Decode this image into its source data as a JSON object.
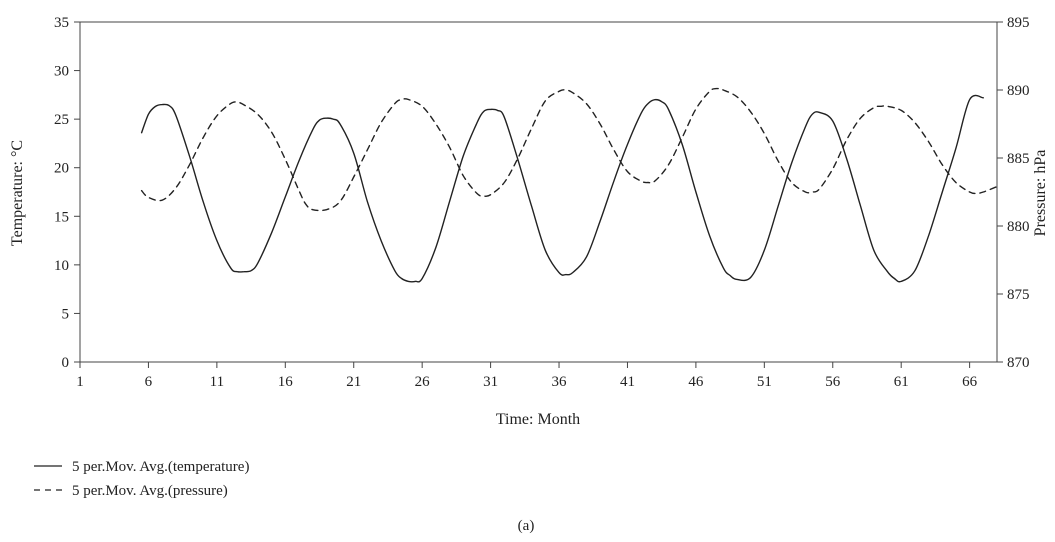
{
  "chart_data": {
    "type": "line",
    "caption": "(a)",
    "xlabel": "Time: Month",
    "ylabel_left": "Temperature: °C",
    "ylabel_right": "Pressure: hPa",
    "xlim": [
      1,
      68
    ],
    "ylim_left": [
      0,
      35
    ],
    "ylim_right": [
      870,
      895
    ],
    "x_ticks": [
      1,
      6,
      11,
      16,
      21,
      26,
      31,
      36,
      41,
      46,
      51,
      56,
      61,
      66
    ],
    "y_ticks_left": [
      0,
      5,
      10,
      15,
      20,
      25,
      30,
      35
    ],
    "y_ticks_right": [
      870,
      875,
      880,
      885,
      890,
      895
    ],
    "grid": false,
    "legend_position": "bottom-left",
    "series": [
      {
        "name": "5 per.Mov. Avg.(temperature)",
        "axis": "left",
        "style": "solid",
        "color": "#222222",
        "x": [
          5.5,
          6,
          6.5,
          7,
          7.5,
          8,
          9,
          10,
          11,
          12,
          12.5,
          13,
          13.5,
          14,
          15,
          16,
          17,
          18,
          18.5,
          19,
          19.5,
          20,
          21,
          22,
          23,
          24,
          24.5,
          25,
          25.5,
          26,
          27,
          28,
          29,
          30,
          30.5,
          31,
          31.5,
          32,
          33,
          34,
          35,
          36,
          36.5,
          37,
          38,
          39,
          40,
          41,
          42,
          42.5,
          43,
          43.5,
          44,
          45,
          46,
          47,
          48,
          48.5,
          49,
          50,
          51,
          52,
          53,
          54,
          54.5,
          55,
          56,
          57,
          58,
          59,
          60,
          60.5,
          61,
          62,
          63,
          64,
          65,
          66,
          67
        ],
        "values": [
          23.6,
          25.5,
          26.3,
          26.5,
          26.4,
          25.4,
          21.2,
          16.5,
          12.5,
          9.7,
          9.3,
          9.3,
          9.4,
          10.2,
          13.3,
          17.0,
          20.7,
          23.9,
          24.9,
          25.1,
          25.0,
          24.5,
          21.5,
          16.5,
          12.5,
          9.4,
          8.6,
          8.3,
          8.3,
          8.6,
          11.8,
          16.5,
          21.2,
          24.6,
          25.8,
          26.0,
          25.9,
          25.2,
          20.8,
          16.0,
          11.5,
          9.2,
          9.0,
          9.2,
          10.8,
          14.5,
          18.6,
          22.4,
          25.6,
          26.6,
          27.0,
          26.8,
          26.0,
          22.4,
          17.5,
          13.0,
          9.7,
          8.9,
          8.5,
          8.7,
          11.5,
          16.0,
          20.5,
          24.2,
          25.5,
          25.7,
          24.8,
          21.0,
          16.2,
          11.5,
          9.3,
          8.6,
          8.3,
          9.4,
          13.0,
          17.5,
          22.0,
          27.0,
          27.2
        ]
      },
      {
        "name": "5 per.Mov. Avg.(pressure)",
        "axis": "right",
        "style": "dashed",
        "color": "#222222",
        "x": [
          5.5,
          6,
          7,
          8,
          9,
          10,
          11,
          12,
          12.5,
          13,
          14,
          15,
          16,
          17,
          17.5,
          18,
          19,
          20,
          21,
          22,
          23,
          24,
          24.5,
          25,
          26,
          27,
          28,
          29,
          30,
          30.5,
          31,
          32,
          33,
          34,
          35,
          36,
          36.5,
          37,
          38,
          39,
          40,
          41,
          42,
          42.5,
          43,
          44,
          45,
          46,
          47,
          47.5,
          48,
          49,
          50,
          51,
          52,
          53,
          54,
          54.5,
          55,
          56,
          57,
          58,
          59,
          59.5,
          60,
          61,
          62,
          63,
          64,
          65,
          66,
          66.5,
          67,
          68
        ],
        "values": [
          882.6,
          882.1,
          881.9,
          882.8,
          884.5,
          886.5,
          888.1,
          889.0,
          889.1,
          888.9,
          888.2,
          886.9,
          884.9,
          882.6,
          881.6,
          881.2,
          881.2,
          881.8,
          883.6,
          885.6,
          887.6,
          889.0,
          889.3,
          889.3,
          888.8,
          887.5,
          885.8,
          883.7,
          882.4,
          882.2,
          882.3,
          883.2,
          885.0,
          887.2,
          889.2,
          889.9,
          890.0,
          889.8,
          889.0,
          887.5,
          885.6,
          884.0,
          883.3,
          883.2,
          883.3,
          884.5,
          886.5,
          888.6,
          889.9,
          890.1,
          890.0,
          889.5,
          888.4,
          886.8,
          884.8,
          883.2,
          882.5,
          882.5,
          882.7,
          884.2,
          886.3,
          887.9,
          888.7,
          888.8,
          888.8,
          888.5,
          887.6,
          886.2,
          884.5,
          883.2,
          882.5,
          882.4,
          882.5,
          882.9
        ]
      }
    ]
  }
}
